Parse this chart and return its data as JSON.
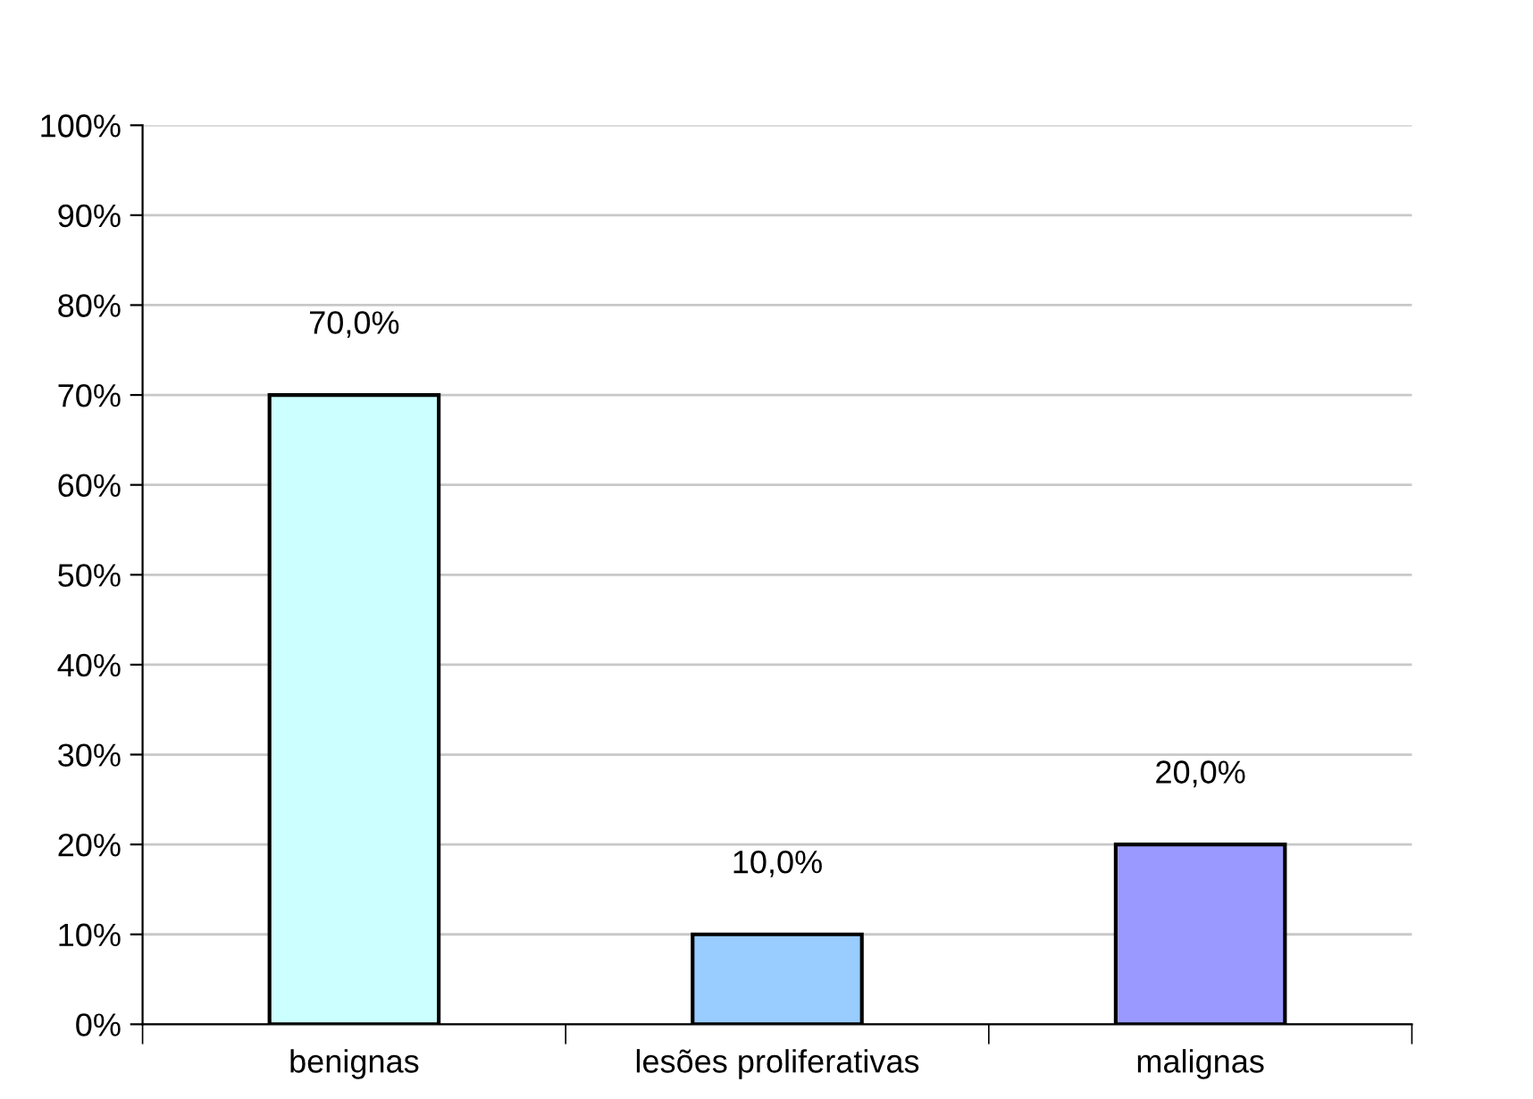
{
  "chart_data": {
    "type": "bar",
    "categories": [
      "benignas",
      "lesões proliferativas",
      "malignas"
    ],
    "values": [
      70,
      10,
      20
    ],
    "colors": [
      "#ccffff",
      "#99ccff",
      "#9999ff"
    ],
    "value_labels": [
      "70,0%",
      "10,0%",
      "20,0%"
    ],
    "ylim": [
      0,
      100
    ],
    "yticks": [
      {
        "value": 0,
        "label": "0%"
      },
      {
        "value": 10,
        "label": "10%"
      },
      {
        "value": 20,
        "label": "20%"
      },
      {
        "value": 30,
        "label": "30%"
      },
      {
        "value": 40,
        "label": "40%"
      },
      {
        "value": 50,
        "label": "50%"
      },
      {
        "value": 60,
        "label": "60%"
      },
      {
        "value": 70,
        "label": "70%"
      },
      {
        "value": 80,
        "label": "80%"
      },
      {
        "value": 90,
        "label": "90%"
      },
      {
        "value": 100,
        "label": "100%"
      }
    ],
    "grid": "y"
  }
}
